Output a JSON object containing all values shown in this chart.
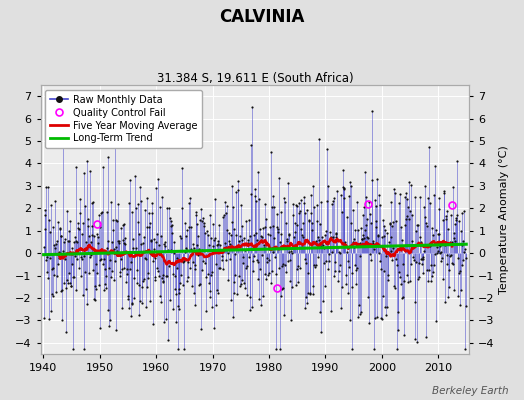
{
  "title": "CALVINIA",
  "subtitle": "31.384 S, 19.611 E (South Africa)",
  "ylabel": "Temperature Anomaly (°C)",
  "attribution": "Berkeley Earth",
  "xlim": [
    1939.5,
    2015.5
  ],
  "ylim": [
    -4.5,
    7.5
  ],
  "yticks": [
    -4,
    -3,
    -2,
    -1,
    0,
    1,
    2,
    3,
    4,
    5,
    6,
    7
  ],
  "xticks": [
    1940,
    1950,
    1960,
    1970,
    1980,
    1990,
    2000,
    2010
  ],
  "bg_color": "#e0e0e0",
  "plot_bg_color": "#ececec",
  "grid_color": "#ffffff",
  "line_color": "#4444cc",
  "line_alpha": 0.7,
  "dot_color": "#111111",
  "ma_color": "#dd0000",
  "trend_color": "#00bb00",
  "qc_color": "#ff00ff",
  "seed": 17,
  "noise_std": 1.55,
  "seasonal_amp": 0.3,
  "n_qc": 4,
  "qc_positions": [
    [
      1949.5,
      1.3
    ],
    [
      1981.5,
      -1.55
    ],
    [
      1997.5,
      2.2
    ],
    [
      2012.5,
      2.15
    ]
  ]
}
